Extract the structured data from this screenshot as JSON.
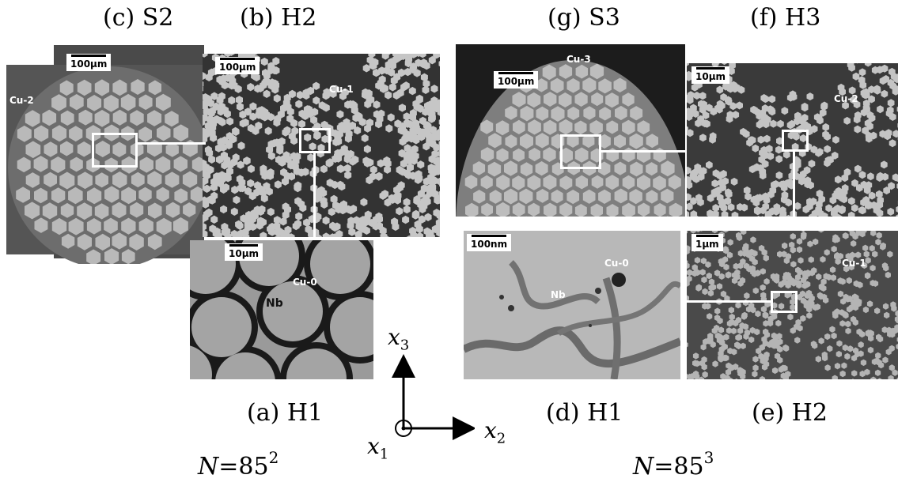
{
  "captions": {
    "c": "(c) S2",
    "b": "(b) H2",
    "g": "(g) S3",
    "f": "(f) H3",
    "a": "(a) H1",
    "d": "(d) H1",
    "e": "(e) H2"
  },
  "n_labels": {
    "left": {
      "symbol": "N",
      "eq": "=85",
      "exp": "2"
    },
    "right": {
      "symbol": "N",
      "eq": "=85",
      "exp": "3"
    }
  },
  "axes": {
    "x1": {
      "base": "x",
      "sub": "1"
    },
    "x2": {
      "base": "x",
      "sub": "2"
    },
    "x3": {
      "base": "x",
      "sub": "3"
    }
  },
  "panels": {
    "c": {
      "scale": "100µm",
      "region": "Cu-2"
    },
    "b": {
      "scale": "100µm",
      "region": "Cu-1"
    },
    "a": {
      "scale": "10µm",
      "region": "Cu-0",
      "phase": "Nb"
    },
    "g": {
      "scale": "100µm",
      "region": "Cu-3"
    },
    "f": {
      "scale": "10µm",
      "region": "Cu-2"
    },
    "d": {
      "scale": "100nm",
      "region": "Cu-0",
      "phase": "Nb"
    },
    "e": {
      "scale": "1µm",
      "region": "Cu-1"
    }
  },
  "colors": {
    "matrix_dark": "#2e2e2e",
    "filament_light": "#c4c4c4",
    "background_gray": "#8a8a8a",
    "highlight": "#ffffff"
  }
}
